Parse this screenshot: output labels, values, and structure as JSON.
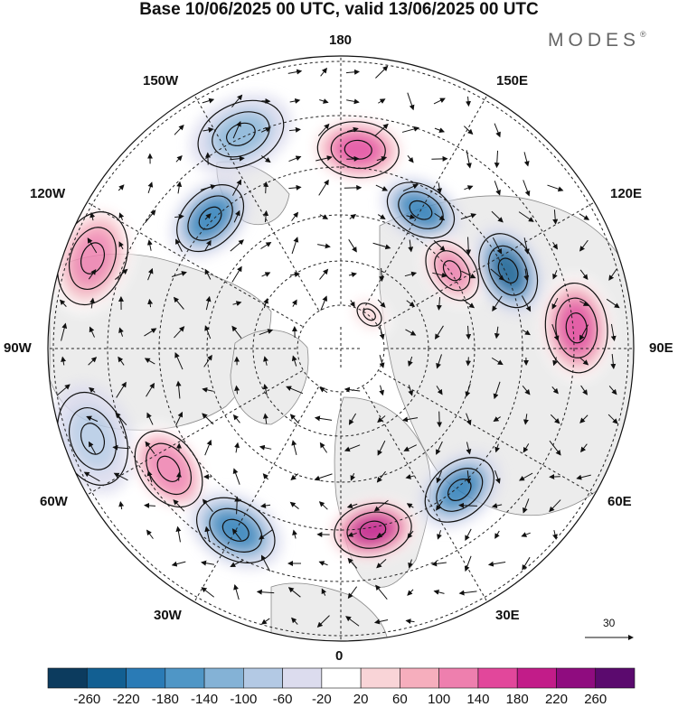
{
  "title": "Base 10/06/2025 00 UTC, valid 13/06/2025 00 UTC",
  "brand": {
    "name": "MODES",
    "mark": "®"
  },
  "longitude_labels": {
    "top": "180",
    "bottom": "0",
    "left": "90W",
    "right": "90E",
    "nw_upper": "150W",
    "nw_lower": "120W",
    "ne_upper": "150E",
    "ne_lower": "120E",
    "sw_upper": "60W",
    "sw_lower": "30W",
    "se_upper": "60E",
    "se_lower": "30E"
  },
  "reference_vector": {
    "label": "30"
  },
  "colorbar": {
    "ticks": [
      "-260",
      "-220",
      "-180",
      "-140",
      "-100",
      "-60",
      "-20",
      "20",
      "60",
      "100",
      "140",
      "180",
      "220",
      "260"
    ],
    "colors": [
      "#0c3b5e",
      "#125f92",
      "#2a7bb6",
      "#4f96c6",
      "#84b2d6",
      "#b3c9e4",
      "#dcdcee",
      "#ffffff",
      "#f9d4d7",
      "#f6aebd",
      "#ee7fae",
      "#e2479b",
      "#c21c89",
      "#8f0c7f",
      "#5b0a6e"
    ]
  },
  "map": {
    "projection": "north polar stereographic",
    "colors": {
      "land": "#ececec",
      "coast": "#777777",
      "grid": "#222222",
      "contour": "#111111"
    }
  },
  "anomalies": [
    {
      "lon": 150,
      "lat": 55,
      "value": -200
    },
    {
      "lon": 175,
      "lat": 47,
      "value": 180
    },
    {
      "lon": 205,
      "lat": 40,
      "value": -130
    },
    {
      "lon": 225,
      "lat": 50,
      "value": -200
    },
    {
      "lon": 250,
      "lat": 35,
      "value": 140
    },
    {
      "lon": 290,
      "lat": 35,
      "value": -100
    },
    {
      "lon": 305,
      "lat": 45,
      "value": 120
    },
    {
      "lon": 330,
      "lat": 45,
      "value": -220
    },
    {
      "lon": 10,
      "lat": 50,
      "value": 210
    },
    {
      "lon": 40,
      "lat": 50,
      "value": -210
    },
    {
      "lon": 95,
      "lat": 40,
      "value": 180
    },
    {
      "lon": 115,
      "lat": 50,
      "value": -250
    },
    {
      "lon": 125,
      "lat": 60,
      "value": 160
    },
    {
      "lon": 140,
      "lat": 80,
      "value": 80
    }
  ]
}
